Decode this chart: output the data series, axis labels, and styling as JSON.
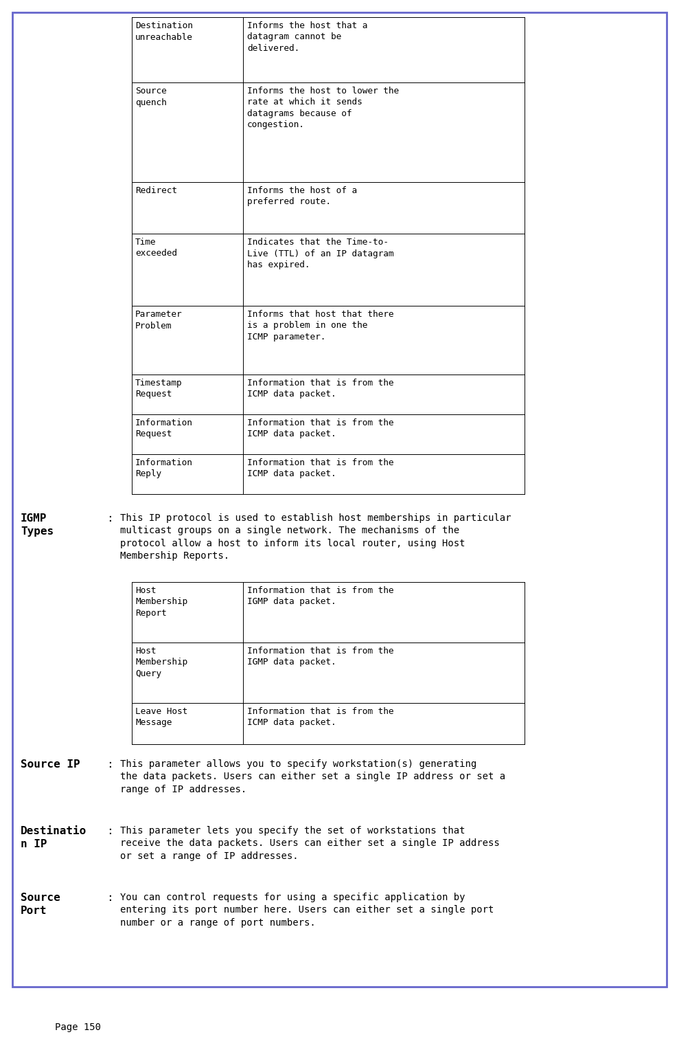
{
  "page_number": "Page 150",
  "background_color": "#ffffff",
  "border_color": "#6666cc",
  "text_color": "#000000",
  "icmp_table": {
    "rows": [
      {
        "term": "Destination\nunreachable",
        "description": "Informs the host that a\ndatagram cannot be\ndelivered."
      },
      {
        "term": "Source\nquench",
        "description": "Informs the host to lower the\nrate at which it sends\ndatagrams because of\ncongestion."
      },
      {
        "term": "Redirect",
        "description": "Informs the host of a\npreferred route."
      },
      {
        "term": "Time\nexceeded",
        "description": "Indicates that the Time-to-\nLive (TTL) of an IP datagram\nhas expired."
      },
      {
        "term": "Parameter\nProblem",
        "description": "Informs that host that there\nis a problem in one the\nICMP parameter."
      },
      {
        "term": "Timestamp\nRequest",
        "description": "Information that is from the\nICMP data packet."
      },
      {
        "term": "Information\nRequest",
        "description": "Information that is from the\nICMP data packet."
      },
      {
        "term": "Information\nReply",
        "description": "Information that is from the\nICMP data packet."
      }
    ]
  },
  "igmp_label": "IGMP\nTypes",
  "igmp_desc": "This IP protocol is used to establish host memberships in particular\nmulticast groups on a single network. The mechanisms of the\nprotocol allow a host to inform its local router, using Host\nMembership Reports.",
  "igmp_table": {
    "rows": [
      {
        "term": "Host\nMembership\nReport",
        "description": "Information that is from the\nIGMP data packet."
      },
      {
        "term": "Host\nMembership\nQuery",
        "description": "Information that is from the\nIGMP data packet."
      },
      {
        "term": "Leave Host\nMessage",
        "description": "Information that is from the\nICMP data packet."
      }
    ]
  },
  "source_ip_label": "Source IP",
  "source_ip_desc": "This parameter allows you to specify workstation(s) generating\nthe data packets. Users can either set a single IP address or set a\nrange of IP addresses.",
  "dest_ip_label": "Destinatio\nn IP",
  "dest_ip_desc": "This parameter lets you specify the set of workstations that\nreceive the data packets. Users can either set a single IP address\nor set a range of IP addresses.",
  "source_port_label": "Source\nPort",
  "source_port_desc": "You can control requests for using a specific application by\nentering its port number here. Users can either set a single port\nnumber or a range of port numbers."
}
